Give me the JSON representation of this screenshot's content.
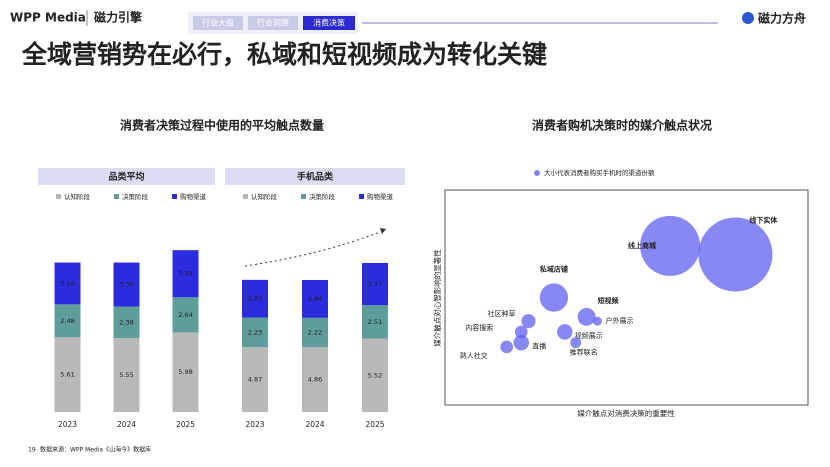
{
  "header": {
    "brand": "WPP Media",
    "partner": "磁力引擎",
    "tabs": [
      "行业大盘",
      "行业洞察",
      "消费决策"
    ],
    "right_brand": "磁力方舟",
    "title": "全域营销势在必行，私域和短视频成为转化关键"
  },
  "footer": {
    "page": "19",
    "source": "数据来源：WPP Media《山海今》数据库"
  },
  "chart_data": [
    {
      "type": "bar",
      "stacked": true,
      "title": "消费者决策过程中使用的平均触点数量",
      "ylim": [
        0,
        13
      ],
      "groups": [
        {
          "name": "品类平均",
          "categories": [
            "2023",
            "2024",
            "2025"
          ],
          "series": [
            {
              "name": "认知阶段",
              "color": "#b9b9b9",
              "values": [
                5.61,
                5.55,
                5.98
              ]
            },
            {
              "name": "决策阶段",
              "color": "#5f9d9a",
              "values": [
                2.48,
                2.38,
                2.64
              ]
            },
            {
              "name": "购物渠道",
              "color": "#2b2be0",
              "values": [
                3.14,
                3.3,
                3.54
              ],
              "value_labels": [
                "3.14",
                "3.30",
                "3.54"
              ]
            }
          ]
        },
        {
          "name": "手机品类",
          "categories": [
            "2023",
            "2024",
            "2025"
          ],
          "series": [
            {
              "name": "认知阶段",
              "color": "#b9b9b9",
              "values": [
                4.87,
                4.86,
                5.52
              ]
            },
            {
              "name": "决策阶段",
              "color": "#5f9d9a",
              "values": [
                2.23,
                2.22,
                2.51
              ]
            },
            {
              "name": "购物渠道",
              "color": "#2b2be0",
              "values": [
                2.83,
                2.84,
                3.17
              ]
            }
          ]
        }
      ]
    },
    {
      "type": "bubble",
      "title": "消费者购机决策时的媒介触点状况",
      "legend": "大小代表消费者购买手机时的渠道份额",
      "xlabel": "媒介触点对消费决策的重要性",
      "ylabel": "媒介触点对心智影响的显著性",
      "xlim": [
        0,
        100
      ],
      "ylim": [
        0,
        100
      ],
      "color": "#5a5af0",
      "points": [
        {
          "label": "线下实体",
          "x": 80,
          "y": 70,
          "size": 137
        },
        {
          "label": "线上商城",
          "x": 62,
          "y": 74,
          "size": 90
        },
        {
          "label": "私域店铺",
          "x": 30,
          "y": 50,
          "size": 20
        },
        {
          "label": "短视频",
          "x": 39,
          "y": 41,
          "size": 8
        },
        {
          "label": "户外展示",
          "x": 42,
          "y": 39,
          "size": 2
        },
        {
          "label": "社区种草",
          "x": 23,
          "y": 39,
          "size": 5
        },
        {
          "label": "内容搜索",
          "x": 21,
          "y": 34,
          "size": 4
        },
        {
          "label": "熟人社交",
          "x": 17,
          "y": 27,
          "size": 4
        },
        {
          "label": "直播",
          "x": 21,
          "y": 29,
          "size": 6
        },
        {
          "label": "视频展示",
          "x": 33,
          "y": 34,
          "size": 6
        },
        {
          "label": "推荐联名",
          "x": 36,
          "y": 29,
          "size": 3
        }
      ]
    }
  ]
}
